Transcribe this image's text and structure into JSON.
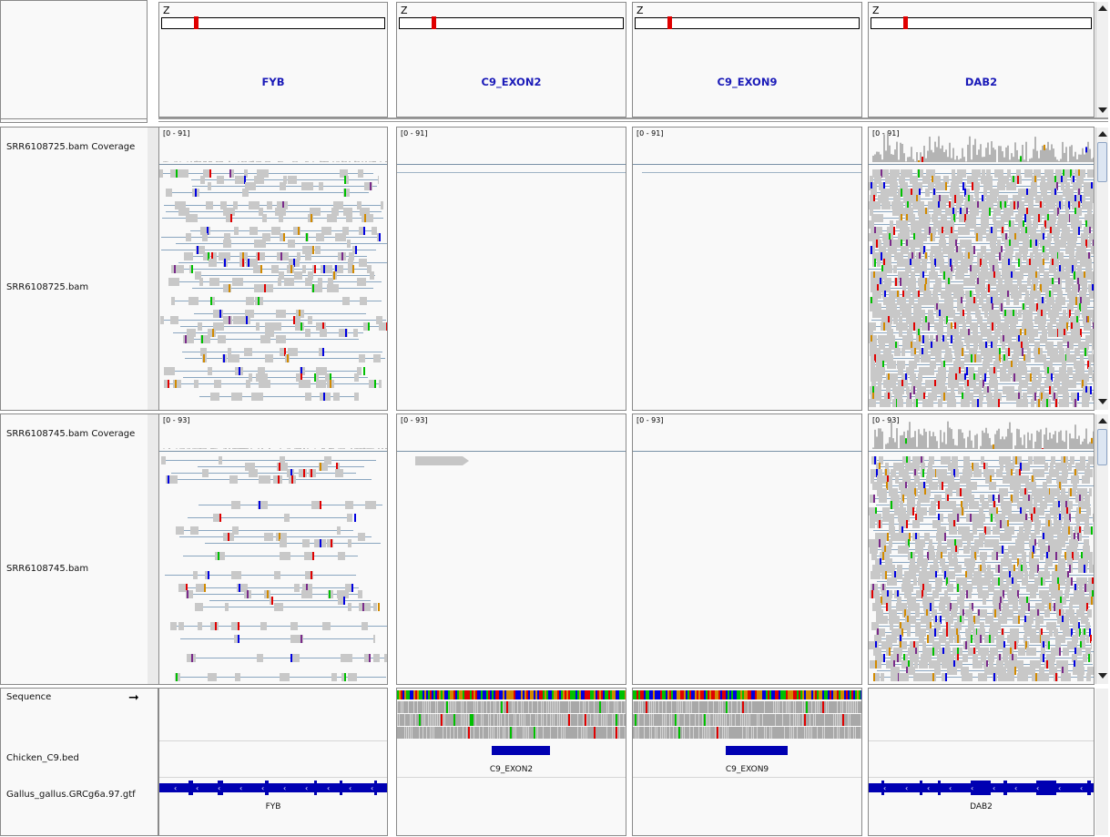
{
  "header": {
    "loci": [
      {
        "name": "FYB",
        "chr": "Z",
        "mark": 0.15
      },
      {
        "name": "C9_EXON2",
        "chr": "Z",
        "mark": 0.15
      },
      {
        "name": "C9_EXON9",
        "chr": "Z",
        "mark": 0.15
      },
      {
        "name": "DAB2",
        "chr": "Z",
        "mark": 0.15
      }
    ]
  },
  "panels": [
    {
      "coverage_label": "SRR6108725.bam Coverage",
      "reads_label": "SRR6108725.bam",
      "ranges": [
        "[0 - 91]",
        "[0 - 91]",
        "[0 - 91]",
        "[0 - 91]"
      ]
    },
    {
      "coverage_label": "SRR6108745.bam Coverage",
      "reads_label": "SRR6108745.bam",
      "ranges": [
        "[0 - 93]",
        "[0 - 93]",
        "[0 - 93]",
        "[0 - 93]"
      ]
    }
  ],
  "features": {
    "sequence_label": "Sequence",
    "bed_label": "Chicken_C9.bed",
    "gtf_label": "Gallus_gallus.GRCg6a.97.gtf",
    "bed_names": [
      "",
      "C9_EXON2",
      "C9_EXON9",
      ""
    ],
    "gtf_names": [
      "FYB",
      "",
      "",
      "DAB2"
    ]
  },
  "colors": {
    "accent": "#1a1ab8",
    "feature": "#0000b2",
    "marker": "#e00000",
    "A": "#00c000",
    "C": "#0000e0",
    "G": "#d18a00",
    "T": "#e00000"
  },
  "icons": {
    "strand": "arrow-right-icon"
  }
}
